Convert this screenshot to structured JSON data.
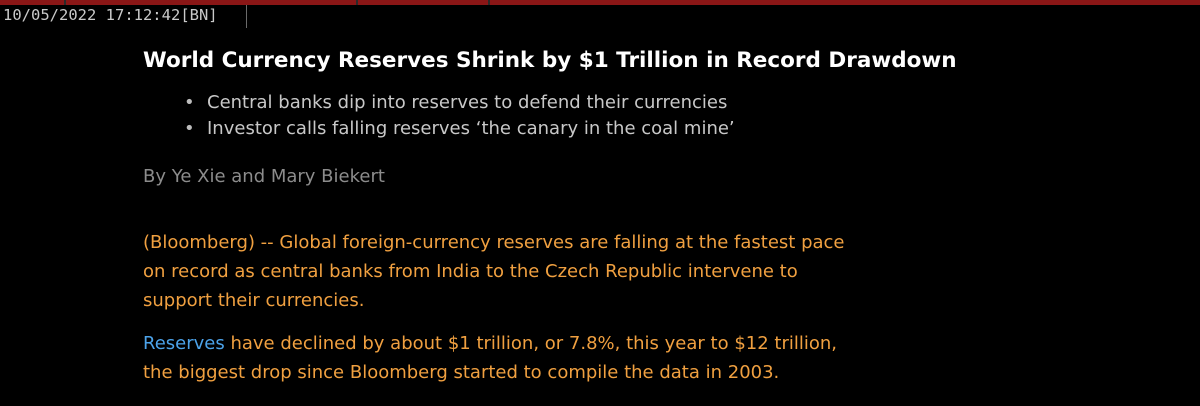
{
  "header": {
    "timestamp": "10/05/2022 17:12:42",
    "source_tag": "[BN]"
  },
  "article": {
    "headline": "World Currency Reserves Shrink by $1 Trillion in Record Drawdown",
    "bullets": [
      "Central banks dip into reserves to defend their currencies",
      "Investor calls falling reserves ‘the canary in the coal mine’"
    ],
    "byline": "By Ye Xie and Mary Biekert",
    "paragraph1": [
      "(Bloomberg) -- Global foreign-currency reserves are falling at the fastest pace",
      "on record as central banks from India to the Czech Republic intervene to",
      "support their currencies."
    ],
    "paragraph2": {
      "link_text": "Reserves",
      "line1_rest": " have declined by about $1 trillion, or 7.8%, this year to $12 trillion,",
      "line2": "the biggest drop since Bloomberg started to compile the data in 2003."
    }
  },
  "colors": {
    "background": "#000000",
    "headline": "#ffffff",
    "bullets": "#c8c8c8",
    "byline": "#8c8c8c",
    "body_text": "#f0a040",
    "link": "#4ca3ea",
    "accent_bar": "#8a1616"
  }
}
